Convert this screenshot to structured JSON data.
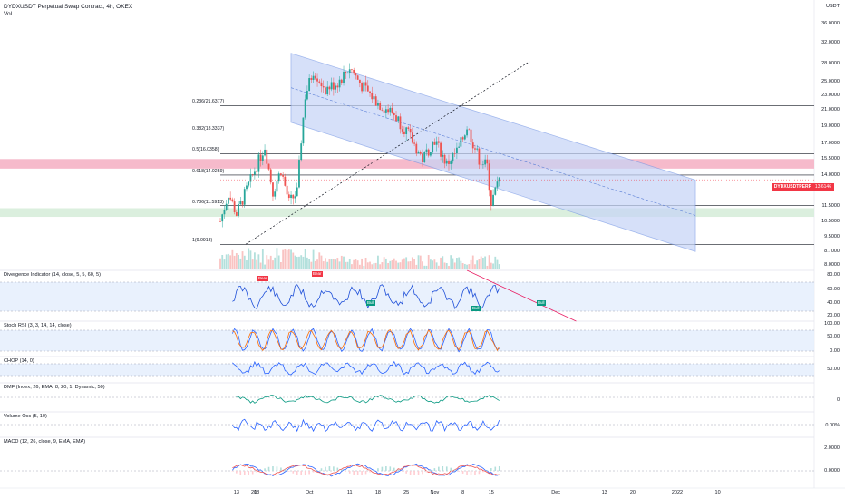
{
  "header": {
    "symbol_line": "DYDXUSDT Perpetual Swap Contract, 4h, OKEX",
    "vol_label": "Vol"
  },
  "currency_label": "USDT",
  "price_axis": [
    "36.0000",
    "32.0000",
    "28.0000",
    "25.0000",
    "23.0000",
    "21.0000",
    "19.0000",
    "17.0000",
    "15.5000",
    "14.0000",
    "11.5000",
    "10.5000",
    "9.5000",
    "8.7000",
    "8.0000"
  ],
  "last_price": {
    "ticker": "DYDXUSDTPERP",
    "value": "13.6146"
  },
  "fib_levels": [
    {
      "label": "0.236(21.6377)"
    },
    {
      "label": "0.382(18.3337)"
    },
    {
      "label": "0.5(16.0358)"
    },
    {
      "label": "0.618(14.0259)"
    },
    {
      "label": "0.786(11.5913)"
    },
    {
      "label": "1(9.0918)"
    }
  ],
  "x_axis": [
    "13",
    "18",
    "20",
    "Oct",
    "11",
    "18",
    "25",
    "Nov",
    "8",
    "15",
    "Dec",
    "13",
    "20",
    "2022",
    "10"
  ],
  "indicators": {
    "divergence": {
      "title": "Divergence Indicator (14, close, 5, 5, 60, 5)",
      "axis": [
        "80.00",
        "60.00",
        "40.00",
        "20.00"
      ],
      "signals": [
        "Bear",
        "Bear",
        "Bull",
        "Bull",
        "Bull"
      ]
    },
    "stoch": {
      "title": "Stoch RSI (3, 3, 14, 14, close)",
      "axis": [
        "100.00",
        "50.00",
        "0.00"
      ]
    },
    "chop": {
      "title": "CHOP (14, 0)",
      "axis": [
        "50.00"
      ]
    },
    "dmf": {
      "title": "DMF (Index, 26, EMA, 8, 20, 1, Dynamic, 50)",
      "axis": [
        "0"
      ]
    },
    "vosc": {
      "title": "Volume Osc (5, 10)",
      "axis": [
        "0.00%"
      ]
    },
    "macd": {
      "title": "MACD (12, 26, close, 9, EMA, EMA)",
      "axis": [
        "2.0000",
        "0.0000"
      ]
    }
  },
  "colors": {
    "bull": "#26a69a",
    "bear": "#ef5350",
    "channel": "#7b9be6",
    "channel_fill": "#c6d4f7",
    "resistance_zone": "#f5b6c8",
    "support_zone": "#d9eedc",
    "divergence_line": "#1e4fd8",
    "rsi_k": "#2962ff",
    "rsi_d": "#ff6d00"
  },
  "chart_data": {
    "type": "candlestick",
    "symbol": "DYDXUSDT Perpetual Swap Contract",
    "timeframe": "4h",
    "exchange": "OKEX",
    "y_scale": "log",
    "ylim": [
      8.0,
      40.0
    ],
    "last_price": 13.6146,
    "fibonacci": [
      {
        "ratio": 0.236,
        "price": 21.6377
      },
      {
        "ratio": 0.382,
        "price": 18.3337
      },
      {
        "ratio": 0.5,
        "price": 16.0358
      },
      {
        "ratio": 0.618,
        "price": 14.0259
      },
      {
        "ratio": 0.786,
        "price": 11.5913
      },
      {
        "ratio": 1,
        "price": 9.0918
      }
    ],
    "zones": [
      {
        "kind": "resistance",
        "from": 14.6,
        "to": 15.5
      },
      {
        "kind": "support",
        "from": 10.8,
        "to": 11.4
      }
    ],
    "price_path": [
      {
        "t": "Sep 9",
        "p": 10.5
      },
      {
        "t": "Sep 11",
        "p": 12.5
      },
      {
        "t": "Sep 13",
        "p": 11.0
      },
      {
        "t": "Sep 17",
        "p": 14.0
      },
      {
        "t": "Sep 20",
        "p": 16.8
      },
      {
        "t": "Sep 22",
        "p": 12.6
      },
      {
        "t": "Sep 24",
        "p": 14.5
      },
      {
        "t": "Sep 26",
        "p": 11.8
      },
      {
        "t": "Sep 28",
        "p": 12.6
      },
      {
        "t": "Sep 29",
        "p": 17.5
      },
      {
        "t": "Sep 30",
        "p": 23.0
      },
      {
        "t": "Oct 2",
        "p": 27.0
      },
      {
        "t": "Oct 5",
        "p": 24.0
      },
      {
        "t": "Oct 8",
        "p": 25.0
      },
      {
        "t": "Oct 11",
        "p": 27.5
      },
      {
        "t": "Oct 14",
        "p": 24.5
      },
      {
        "t": "Oct 18",
        "p": 22.0
      },
      {
        "t": "Oct 22",
        "p": 20.5
      },
      {
        "t": "Oct 25",
        "p": 18.5
      },
      {
        "t": "Oct 29",
        "p": 15.5
      },
      {
        "t": "Nov 1",
        "p": 17.5
      },
      {
        "t": "Nov 4",
        "p": 15.0
      },
      {
        "t": "Nov 7",
        "p": 16.5
      },
      {
        "t": "Nov 9",
        "p": 19.0
      },
      {
        "t": "Nov 12",
        "p": 15.5
      },
      {
        "t": "Nov 14",
        "p": 14.8
      },
      {
        "t": "Nov 15",
        "p": 11.8
      },
      {
        "t": "Nov 17",
        "p": 13.6146
      }
    ]
  }
}
